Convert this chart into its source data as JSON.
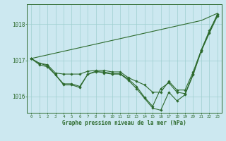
{
  "background_color": "#cce8f0",
  "line_color": "#2d6a2d",
  "grid_color": "#9fcfcf",
  "xlabel": "Graphe pression niveau de la mer (hPa)",
  "yticks": [
    1016,
    1017,
    1018
  ],
  "xlim": [
    -0.5,
    23.5
  ],
  "ylim": [
    1015.55,
    1018.55
  ],
  "hours": [
    0,
    1,
    2,
    3,
    4,
    5,
    6,
    7,
    8,
    9,
    10,
    11,
    12,
    13,
    14,
    15,
    16,
    17,
    18,
    19,
    20,
    21,
    22,
    23
  ],
  "top_line": [
    1017.05,
    1017.1,
    1017.15,
    1017.2,
    1017.25,
    1017.3,
    1017.35,
    1017.4,
    1017.45,
    1017.5,
    1017.55,
    1017.6,
    1017.65,
    1017.7,
    1017.75,
    1017.8,
    1017.85,
    1017.9,
    1017.95,
    1018.0,
    1018.05,
    1018.1,
    1018.2,
    1018.3
  ],
  "main_line": [
    1017.05,
    1016.92,
    1016.85,
    1016.6,
    1016.35,
    1016.35,
    1016.28,
    1016.62,
    1016.68,
    1016.68,
    1016.63,
    1016.63,
    1016.48,
    1016.28,
    1015.98,
    1015.73,
    1016.22,
    1016.38,
    1016.12,
    1016.08,
    1016.62,
    1017.28,
    1017.78,
    1018.28
  ],
  "low_line": [
    1017.05,
    1016.88,
    1016.82,
    1016.6,
    1016.32,
    1016.32,
    1016.25,
    1016.62,
    1016.7,
    1016.65,
    1016.62,
    1016.62,
    1016.45,
    1016.22,
    1015.95,
    1015.68,
    1015.62,
    1016.12,
    1015.88,
    1016.05,
    1016.6,
    1017.25,
    1017.75,
    1018.22
  ],
  "mid_line": [
    1017.05,
    1016.92,
    1016.88,
    1016.65,
    1016.62,
    1016.62,
    1016.62,
    1016.7,
    1016.72,
    1016.72,
    1016.68,
    1016.68,
    1016.52,
    1016.42,
    1016.32,
    1016.12,
    1016.12,
    1016.42,
    1016.18,
    1016.18,
    1016.68,
    1017.28,
    1017.82,
    1018.25
  ]
}
